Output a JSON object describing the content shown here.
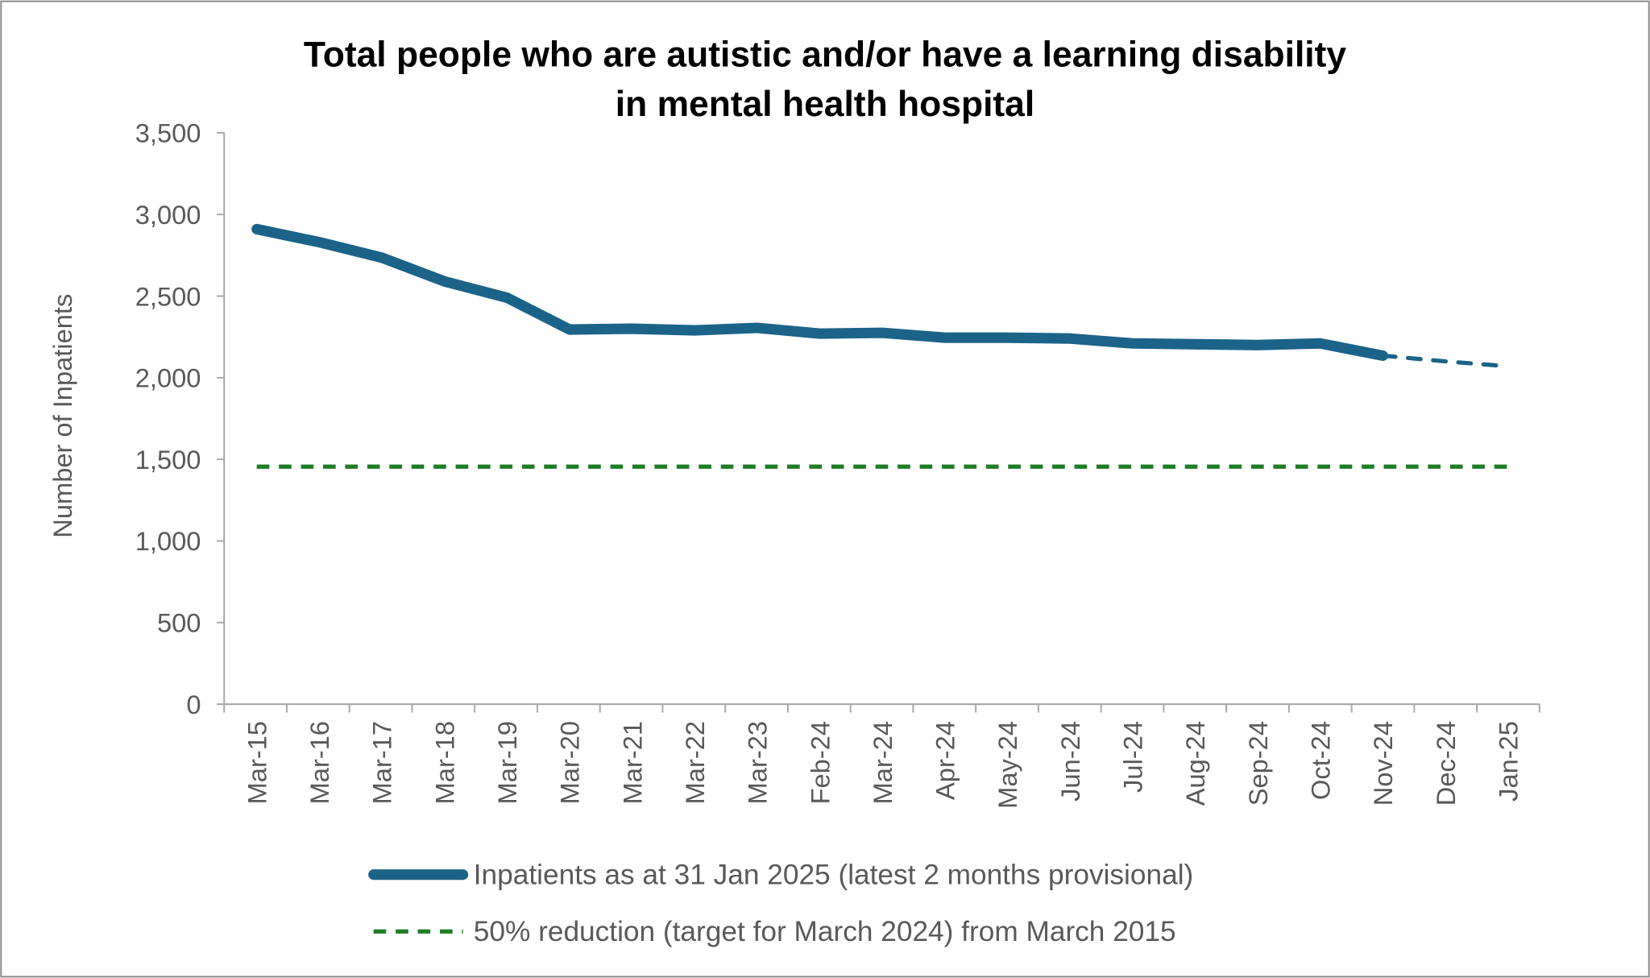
{
  "chart_data": {
    "type": "line",
    "title_lines": [
      "Total people who are autistic and/or have a learning disability",
      "in mental health hospital"
    ],
    "xlabel": "",
    "ylabel": "Number of Inpatients",
    "ylim": [
      0,
      3500
    ],
    "yticks": [
      0,
      500,
      1000,
      1500,
      2000,
      2500,
      3000,
      3500
    ],
    "ytick_labels": [
      "0",
      "500",
      "1,000",
      "1,500",
      "2,000",
      "2,500",
      "3,000",
      "3,500"
    ],
    "categories": [
      "Mar-15",
      "Mar-16",
      "Mar-17",
      "Mar-18",
      "Mar-19",
      "Mar-20",
      "Mar-21",
      "Mar-22",
      "Mar-23",
      "Feb-24",
      "Mar-24",
      "Apr-24",
      "May-24",
      "Jun-24",
      "Jul-24",
      "Aug-24",
      "Sep-24",
      "Oct-24",
      "Nov-24",
      "Dec-24",
      "Jan-25"
    ],
    "grid": false,
    "legend_placement": "bottom",
    "series": [
      {
        "name": "Inpatients as at 31 Jan 2025 (latest 2 months provisional)",
        "color": "#1B6389",
        "style": "solid, last 2 months dashed",
        "values": [
          2910,
          2830,
          2735,
          2590,
          2490,
          2295,
          2300,
          2290,
          2305,
          2270,
          2275,
          2245,
          2245,
          2240,
          2210,
          2205,
          2200,
          2210,
          2135,
          2100,
          2070
        ]
      },
      {
        "name": "50% reduction (target for March 2024) from March 2015",
        "color": "#1E7D25",
        "style": "dashed",
        "values": [
          1455,
          1455,
          1455,
          1455,
          1455,
          1455,
          1455,
          1455,
          1455,
          1455,
          1455,
          1455,
          1455,
          1455,
          1455,
          1455,
          1455,
          1455,
          1455,
          1455,
          1455
        ]
      }
    ]
  }
}
